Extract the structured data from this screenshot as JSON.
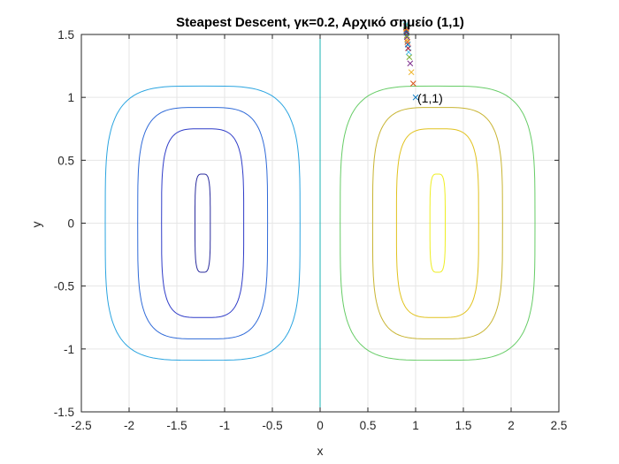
{
  "chart_data": {
    "type": "contour",
    "title": "Steapest Descent, γκ=0.2, Αρχικό σημείο (1,1)",
    "xlabel": "x",
    "ylabel": "y",
    "xlim": [
      -2.5,
      2.5
    ],
    "ylim": [
      -1.5,
      1.5
    ],
    "xticks": [
      -2.5,
      -2,
      -1.5,
      -1,
      -0.5,
      0,
      0.5,
      1,
      1.5,
      2,
      2.5
    ],
    "yticks": [
      -1.5,
      -1,
      -0.5,
      0,
      0.5,
      1,
      1.5
    ],
    "xtick_labels": [
      "-2.5",
      "-2",
      "-1.5",
      "-1",
      "-0.5",
      "0",
      "0.5",
      "1",
      "1.5",
      "2",
      "2.5"
    ],
    "ytick_labels": [
      "-1.5",
      "-1",
      "-0.5",
      "0",
      "0.5",
      "1",
      "1.5"
    ],
    "grid": true,
    "contours": [
      {
        "center": [
          -1.23,
          0
        ],
        "half_width": 0.08,
        "half_height": 0.39,
        "color": "#2b2d9e"
      },
      {
        "center": [
          -1.23,
          0
        ],
        "half_width": 0.43,
        "half_height": 0.75,
        "color": "#2f3cc8"
      },
      {
        "center": [
          -1.23,
          0
        ],
        "half_width": 0.68,
        "half_height": 0.92,
        "color": "#2f6ad8"
      },
      {
        "center": [
          -1.23,
          0
        ],
        "half_width": 1.02,
        "half_height": 1.09,
        "color": "#2aa4e0"
      },
      {
        "center": [
          0,
          0
        ],
        "half_width": 0,
        "half_height": 1.5,
        "color": "#19b3b3",
        "kind": "vline"
      },
      {
        "center": [
          1.23,
          0
        ],
        "half_width": 0.08,
        "half_height": 0.39,
        "color": "#eeee22"
      },
      {
        "center": [
          1.23,
          0
        ],
        "half_width": 0.43,
        "half_height": 0.75,
        "color": "#e1c21e"
      },
      {
        "center": [
          1.23,
          0
        ],
        "half_width": 0.68,
        "half_height": 0.92,
        "color": "#c8b432"
      },
      {
        "center": [
          1.23,
          0
        ],
        "half_width": 1.02,
        "half_height": 1.09,
        "color": "#66cc66"
      }
    ],
    "iterates": {
      "marker": "x",
      "x": [
        1.0,
        0.975,
        0.955,
        0.943,
        0.934,
        0.927,
        0.922,
        0.918,
        0.914,
        0.911,
        0.909,
        0.907,
        0.905,
        0.904,
        0.903,
        0.902,
        0.901,
        0.9,
        0.9,
        0.899
      ],
      "y": [
        1.0,
        1.11,
        1.2,
        1.27,
        1.32,
        1.36,
        1.39,
        1.42,
        1.44,
        1.46,
        1.48,
        1.49,
        1.51,
        1.52,
        1.53,
        1.54,
        1.55,
        1.56,
        1.57,
        1.58
      ],
      "colors": [
        "#0072bd",
        "#d95319",
        "#edb120",
        "#7e2f8e",
        "#77ac30",
        "#4dbeee",
        "#a2142f"
      ]
    },
    "annotations": [
      {
        "text": "(1,1)",
        "x": 1.0,
        "y": 1.0
      }
    ]
  }
}
